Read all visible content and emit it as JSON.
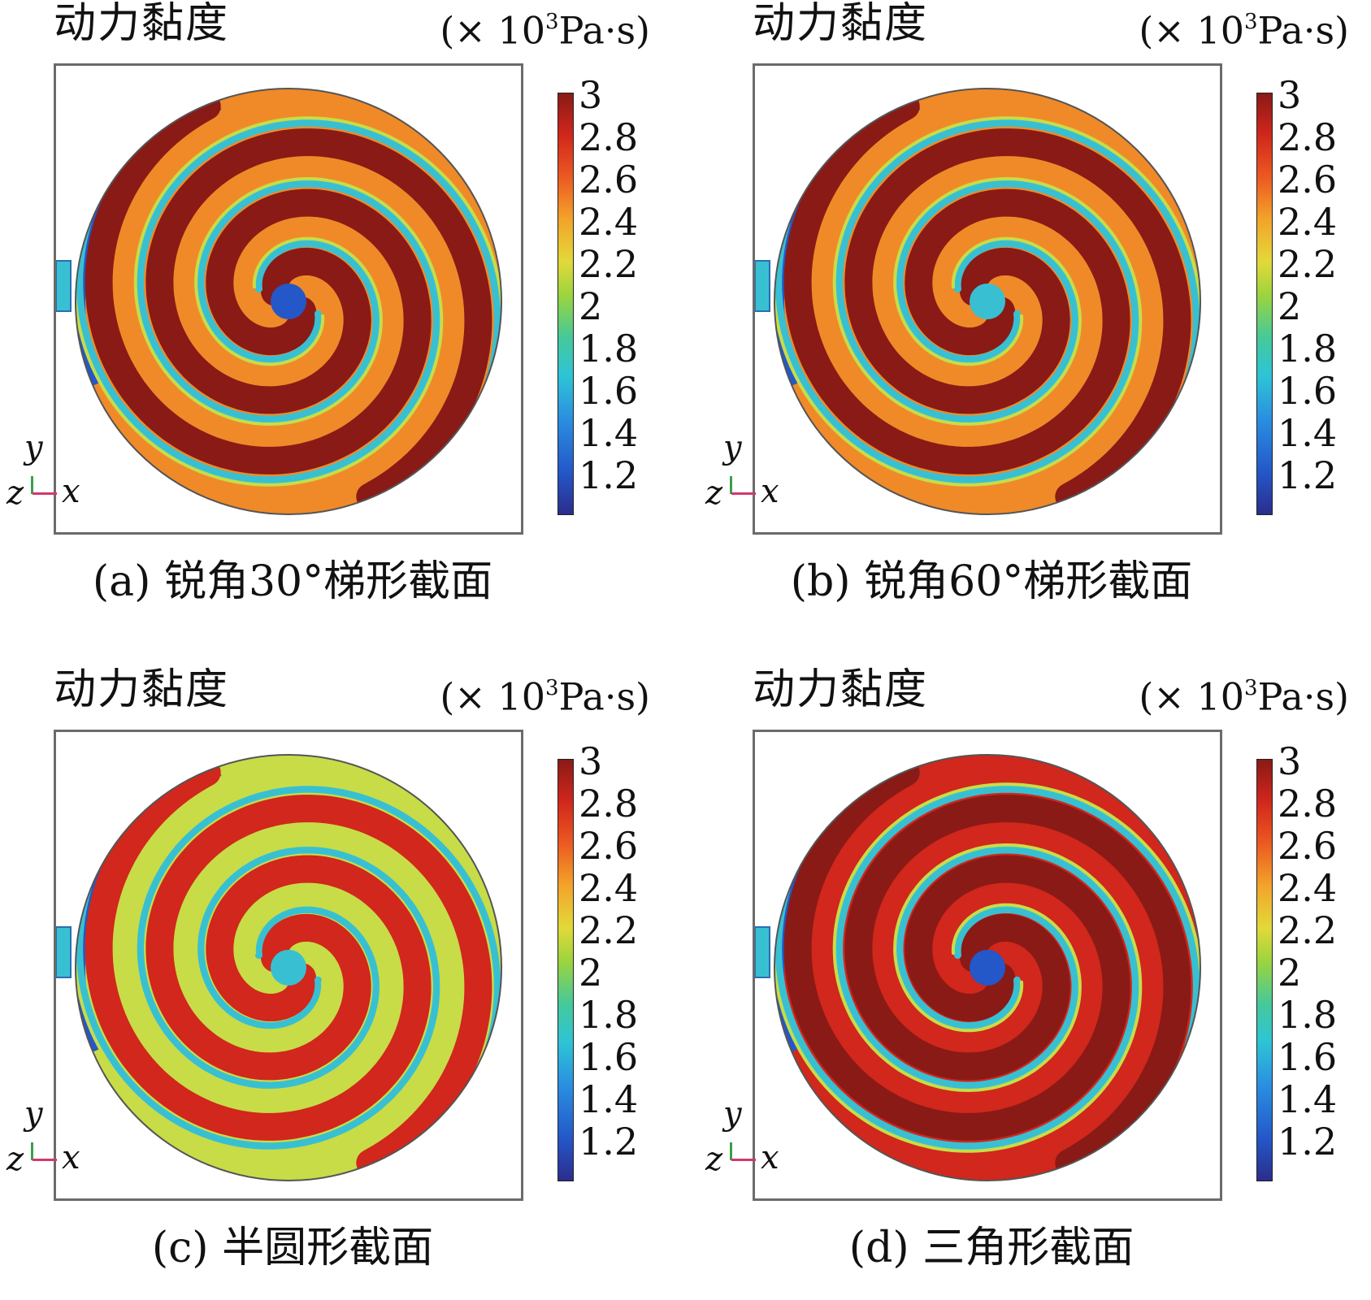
{
  "quantity_label": "动力黏度",
  "unit": {
    "prefix": "(× 10",
    "exp": "3",
    "suffix": "Pa·s)"
  },
  "colorbar_ticks": [
    "3",
    "2.8",
    "2.6",
    "2.4",
    "2.2",
    "2",
    "1.8",
    "1.6",
    "1.4",
    "1.2"
  ],
  "axes": {
    "y": "y",
    "z": "z",
    "x": "x"
  },
  "panels": [
    {
      "caption": "(a) 锐角30°梯形截面"
    },
    {
      "caption": "(b) 锐角60°梯形截面"
    },
    {
      "caption": "(c) 半圆形截面"
    },
    {
      "caption": "(d) 三角形截面"
    }
  ],
  "colors": {
    "dark_red": "#8a1a16",
    "red": "#d1271c",
    "orange": "#f08a28",
    "yellow_green": "#c8dc48",
    "cyan": "#38c0d2",
    "blue": "#2457c8",
    "navy": "#2b2d8c"
  }
}
